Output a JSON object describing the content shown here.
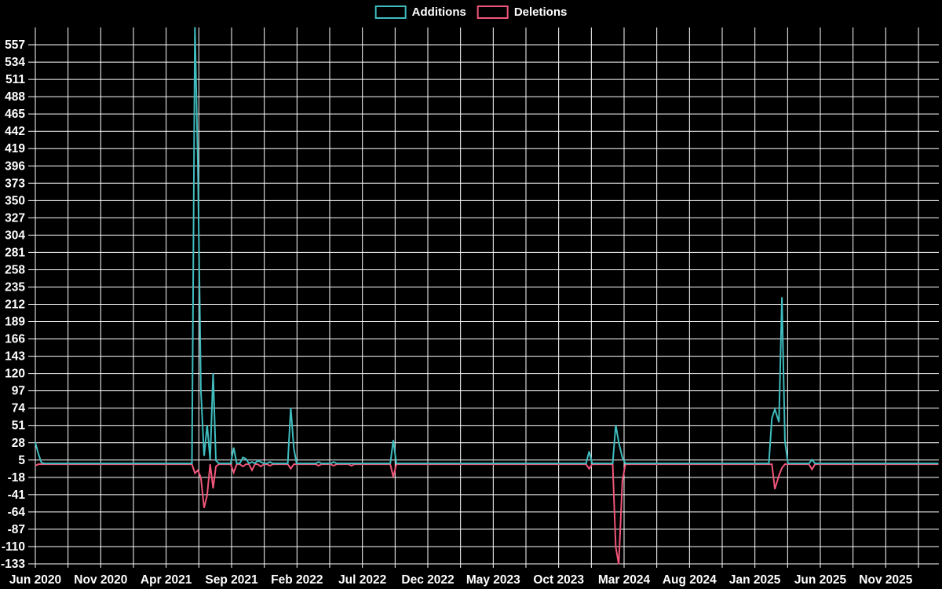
{
  "chart_data": {
    "type": "line",
    "title": "",
    "background": "#000000",
    "grid_color": "#ffffff",
    "text_color": "#ffffff",
    "legend_position": "top-center",
    "grid": true,
    "ylim": [
      -133,
      580
    ],
    "y_ticks": [
      557,
      534,
      511,
      488,
      465,
      442,
      419,
      396,
      373,
      350,
      327,
      304,
      281,
      258,
      235,
      212,
      189,
      166,
      143,
      120,
      97,
      74,
      51,
      28,
      5,
      -18,
      -41,
      -64,
      -87,
      -110,
      -133
    ],
    "x_ticks": [
      "Jun 2020",
      "Nov 2020",
      "Apr 2021",
      "Sep 2021",
      "Feb 2022",
      "Jul 2022",
      "Dec 2022",
      "May 2023",
      "Oct 2023",
      "Mar 2024",
      "Aug 2024",
      "Jan 2025",
      "Jun 2025",
      "Nov 2025"
    ],
    "x_tick_interval_months": 5,
    "x_start_week": "2020-06-07",
    "legend": [
      {
        "name": "Additions",
        "color": "#3fbdbf"
      },
      {
        "name": "Deletions",
        "color": "#f1567a"
      }
    ],
    "series": [
      {
        "name": "Additions",
        "color": "#3fbdbf",
        "default_value": 0,
        "points": {
          "2020-06-07": 28,
          "2020-06-14": 13,
          "2020-06-21": 1,
          "2021-06-13": 580,
          "2021-06-20": 396,
          "2021-06-27": 97,
          "2021-07-04": 10,
          "2021-07-11": 51,
          "2021-07-18": 5,
          "2021-07-25": 120,
          "2021-08-01": 4,
          "2021-09-12": 21,
          "2021-10-03": 8,
          "2021-10-10": 6,
          "2021-10-24": 2,
          "2021-11-07": 4,
          "2021-11-14": 2,
          "2021-12-05": 2,
          "2022-01-23": 74,
          "2022-01-30": 20,
          "2022-03-27": 2,
          "2022-05-01": 2,
          "2022-09-18": 31,
          "2023-12-17": 16,
          "2024-02-18": 51,
          "2024-02-25": 28,
          "2024-03-03": 8,
          "2025-02-16": 60,
          "2025-02-23": 72,
          "2025-03-02": 55,
          "2025-03-09": 221,
          "2025-03-16": 30,
          "2025-05-18": 5
        }
      },
      {
        "name": "Deletions",
        "color": "#f1567a",
        "default_value": 0,
        "points": {
          "2020-06-07": -2,
          "2021-06-13": -12,
          "2021-06-20": -8,
          "2021-06-27": -18,
          "2021-07-04": -58,
          "2021-07-11": -41,
          "2021-07-25": -32,
          "2021-08-01": -3,
          "2021-09-12": -11,
          "2021-10-03": -3,
          "2021-10-24": -8,
          "2021-11-14": -3,
          "2021-12-05": -2,
          "2022-01-23": -6,
          "2022-03-27": -2,
          "2022-05-01": -2,
          "2022-06-12": -2,
          "2022-09-18": -17,
          "2023-12-17": -6,
          "2024-02-18": -110,
          "2024-02-25": -133,
          "2024-03-03": -23,
          "2025-02-23": -33,
          "2025-03-02": -15,
          "2025-03-09": -5,
          "2025-05-18": -7
        }
      }
    ]
  }
}
